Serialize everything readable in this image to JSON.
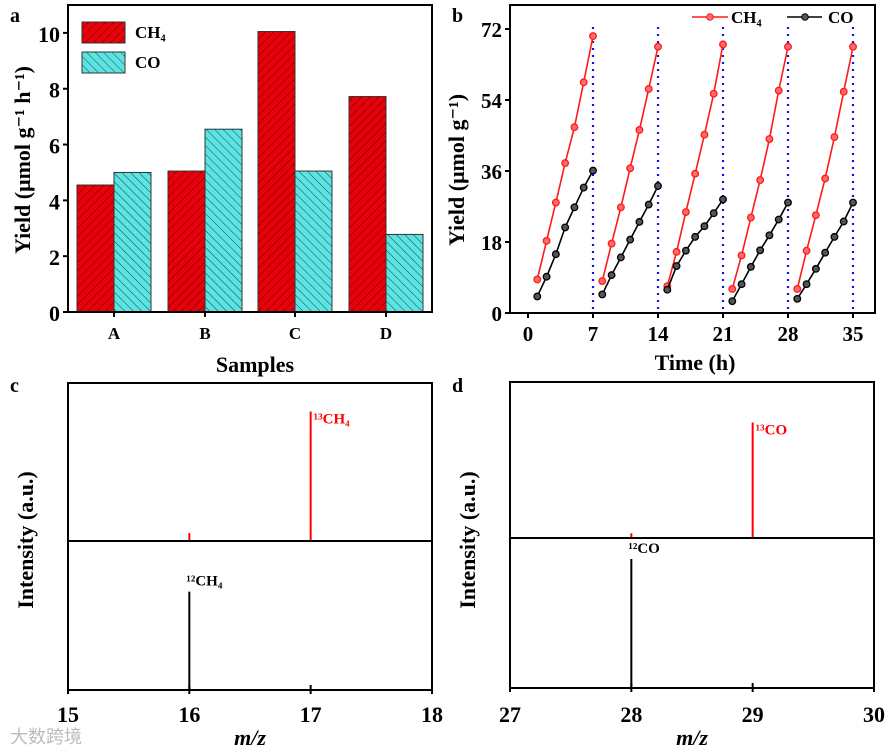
{
  "watermark": "大数跨境",
  "chart_data": [
    {
      "panel": "a",
      "type": "bar",
      "xlabel": "Samples",
      "ylabel": "Yield (μmol g⁻¹ h⁻¹)",
      "categories": [
        "A",
        "B",
        "C",
        "D"
      ],
      "ylim": [
        0,
        11
      ],
      "yticks": [
        "0",
        "2",
        "4",
        "6",
        "8",
        "10"
      ],
      "legend_position": "top-left",
      "series": [
        {
          "name": "CH₄",
          "color": "#e8000b",
          "values": [
            4.55,
            5.05,
            10.05,
            7.72
          ]
        },
        {
          "name": "CO",
          "color": "#5ee3e3",
          "values": [
            5.0,
            6.55,
            5.05,
            2.78
          ]
        }
      ]
    },
    {
      "panel": "b",
      "type": "line",
      "xlabel": "Time (h)",
      "ylabel": "Yield (μmol g⁻¹)",
      "xlim": [
        -2,
        37
      ],
      "ylim": [
        0,
        76
      ],
      "xticks": [
        "0",
        "7",
        "14",
        "21",
        "28",
        "35"
      ],
      "yticks": [
        "0",
        "18",
        "36",
        "54",
        "72"
      ],
      "cycle_boundaries": [
        7,
        14,
        21,
        28,
        35
      ],
      "legend_position": "top-right",
      "series": [
        {
          "name": "CH₄",
          "color": "#ff1a1a",
          "cycles": [
            {
              "x": [
                1,
                2,
                3,
                4,
                5,
                6,
                7
              ],
              "y": [
                8.5,
                18.3,
                28.0,
                38.0,
                47.1,
                58.5,
                70.2
              ]
            },
            {
              "x": [
                8,
                9,
                10,
                11,
                12,
                13,
                14
              ],
              "y": [
                8.1,
                17.6,
                26.8,
                36.7,
                46.4,
                56.8,
                67.5
              ]
            },
            {
              "x": [
                15,
                16,
                17,
                18,
                19,
                20,
                21
              ],
              "y": [
                6.8,
                15.5,
                25.6,
                35.3,
                45.2,
                55.6,
                68.1
              ]
            },
            {
              "x": [
                22,
                23,
                24,
                25,
                26,
                27,
                28
              ],
              "y": [
                6.1,
                14.6,
                24.2,
                33.7,
                44.1,
                56.4,
                67.5
              ]
            },
            {
              "x": [
                29,
                30,
                31,
                32,
                33,
                34,
                35
              ],
              "y": [
                6.1,
                15.8,
                24.8,
                34.1,
                44.6,
                56.1,
                67.5
              ]
            }
          ]
        },
        {
          "name": "CO",
          "color": "#000000",
          "cycles": [
            {
              "x": [
                1,
                2,
                3,
                4,
                5,
                6,
                7
              ],
              "y": [
                4.2,
                9.2,
                14.9,
                21.7,
                26.8,
                31.8,
                36.1
              ]
            },
            {
              "x": [
                8,
                9,
                10,
                11,
                12,
                13,
                14
              ],
              "y": [
                4.7,
                9.6,
                14.1,
                18.6,
                23.1,
                27.5,
                32.2
              ]
            },
            {
              "x": [
                15,
                16,
                17,
                18,
                19,
                20,
                21
              ],
              "y": [
                5.9,
                11.9,
                15.8,
                19.3,
                22.0,
                25.3,
                28.8
              ]
            },
            {
              "x": [
                22,
                23,
                24,
                25,
                26,
                27,
                28
              ],
              "y": [
                3.0,
                7.3,
                11.7,
                15.9,
                19.7,
                23.7,
                28.0
              ]
            },
            {
              "x": [
                29,
                30,
                31,
                32,
                33,
                34,
                35
              ],
              "y": [
                3.6,
                7.3,
                11.2,
                15.3,
                19.3,
                23.2,
                28.0
              ]
            }
          ]
        }
      ]
    },
    {
      "panel": "c",
      "type": "bar",
      "subtype": "mass-spectrum-stacked",
      "xlabel": "m/z",
      "ylabel": "Intensity (a.u.)",
      "xlim": [
        15,
        18
      ],
      "xticks": [
        "15",
        "16",
        "17",
        "18"
      ],
      "upper": {
        "color": "#ff0000",
        "peaks": [
          {
            "x": 16,
            "y": 0.05
          },
          {
            "x": 17,
            "y": 0.82,
            "label": "¹³CH₄"
          }
        ]
      },
      "lower": {
        "color": "#000000",
        "peaks": [
          {
            "x": 16,
            "y": 0.66,
            "label": "¹²CH₄"
          }
        ]
      }
    },
    {
      "panel": "d",
      "type": "bar",
      "subtype": "mass-spectrum-stacked",
      "xlabel": "m/z",
      "ylabel": "Intensity (a.u.)",
      "xlim": [
        27,
        30
      ],
      "xticks": [
        "27",
        "28",
        "29",
        "30"
      ],
      "upper": {
        "color": "#ff0000",
        "peaks": [
          {
            "x": 28,
            "y": 0.03
          },
          {
            "x": 29,
            "y": 0.74,
            "label": "¹³CO"
          }
        ]
      },
      "lower": {
        "color": "#000000",
        "peaks": [
          {
            "x": 28,
            "y": 0.86,
            "label": "¹²CO"
          }
        ]
      }
    }
  ]
}
